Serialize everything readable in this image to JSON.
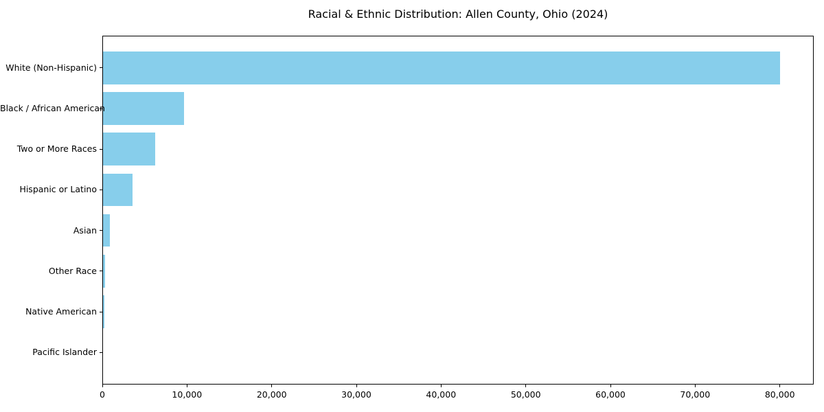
{
  "chart_data": {
    "type": "bar",
    "orientation": "horizontal",
    "title": "Racial & Ethnic Distribution: Allen County, Ohio (2024)",
    "categories": [
      "White (Non-Hispanic)",
      "Black / African American",
      "Two or More Races",
      "Hispanic or Latino",
      "Asian",
      "Other Race",
      "Native American",
      "Pacific Islander"
    ],
    "values": [
      80000,
      9650,
      6250,
      3600,
      900,
      360,
      270,
      30
    ],
    "bar_color": "#87CEEB",
    "xlabel": "",
    "ylabel": "",
    "xlim": [
      0,
      84000
    ],
    "x_ticks": [
      0,
      10000,
      20000,
      30000,
      40000,
      50000,
      60000,
      70000,
      80000
    ],
    "x_tick_labels": [
      "0",
      "10,000",
      "20,000",
      "30,000",
      "40,000",
      "50,000",
      "60,000",
      "70,000",
      "80,000"
    ],
    "grid": false,
    "legend": "none",
    "background_color": "#ffffff",
    "text_color": "#000000"
  }
}
